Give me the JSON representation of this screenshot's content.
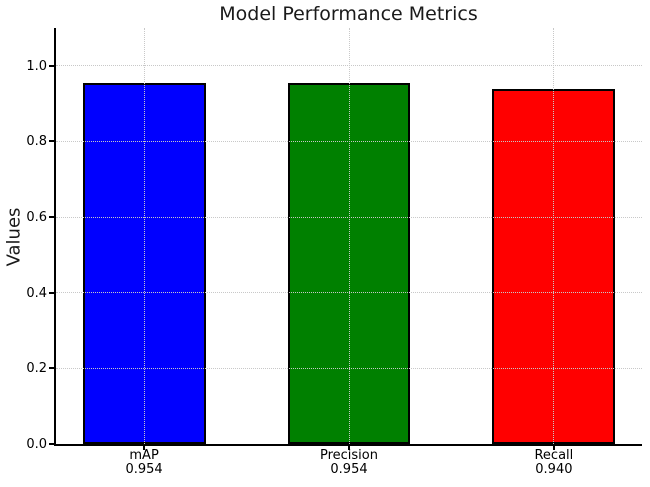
{
  "chart_data": {
    "type": "bar",
    "title": "Model Performance Metrics",
    "xlabel": "",
    "ylabel": "Values",
    "categories": [
      "mAP",
      "Precision",
      "Recall"
    ],
    "values": [
      0.954,
      0.954,
      0.94
    ],
    "value_labels": [
      "0.954",
      "0.954",
      "0.940"
    ],
    "bar_colors": [
      "#0000ff",
      "#008000",
      "#ff0000"
    ],
    "bar_edge_color": "#000000",
    "bar_width": 0.6,
    "yticks": [
      0.0,
      0.2,
      0.4,
      0.6,
      0.8,
      1.0
    ],
    "ytick_labels": [
      "0.0",
      "0.2",
      "0.4",
      "0.6",
      "0.8",
      "1.0"
    ],
    "ylim": [
      0,
      1.1
    ],
    "xlim": [
      -0.43,
      2.43
    ],
    "grid": "dotted",
    "grid_color": "#c8c8c8",
    "grid_over_bars": true,
    "legend": "none",
    "background_color": "#ffffff",
    "text_color": "#000000"
  }
}
